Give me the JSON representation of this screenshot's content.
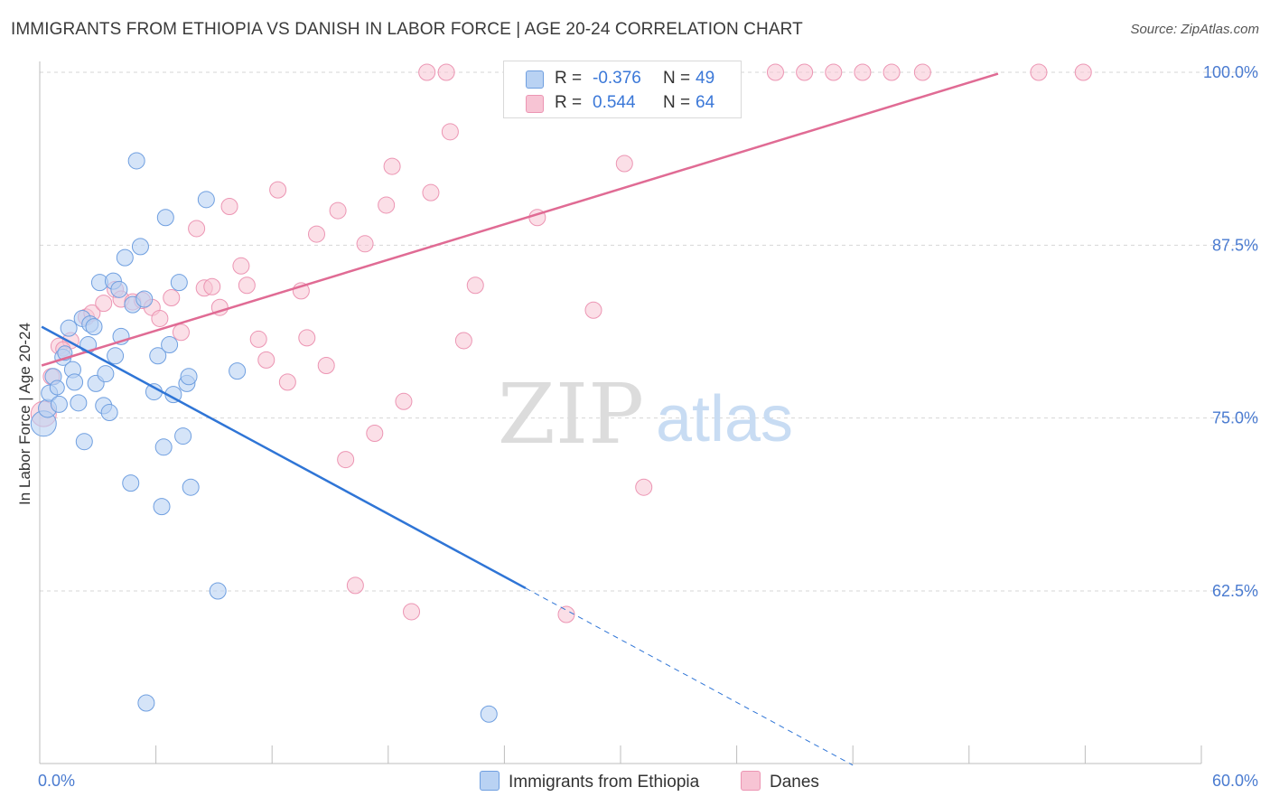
{
  "header": {
    "title": "IMMIGRANTS FROM ETHIOPIA VS DANISH IN LABOR FORCE | AGE 20-24 CORRELATION CHART",
    "source": "Source: ZipAtlas.com"
  },
  "watermark": {
    "zip": "ZIP",
    "atlas": "atlas"
  },
  "legend": {
    "rows": [
      {
        "r_label": "R =",
        "r_value": "-0.376",
        "n_label": "N =",
        "n_value": "49"
      },
      {
        "r_label": "R =",
        "r_value": "0.544",
        "n_label": "N =",
        "n_value": "64"
      }
    ],
    "bottom": [
      {
        "label": "Immigrants from Ethiopia"
      },
      {
        "label": "Danes"
      }
    ]
  },
  "colors": {
    "blue_fill": "#b9d2f3",
    "blue_stroke": "#6f9fe0",
    "blue_line": "#2f75d6",
    "pink_fill": "#f7c4d4",
    "pink_stroke": "#ec95b3",
    "pink_line": "#e06b94",
    "tick_text": "#4a7bd0",
    "grid": "#d6d6d6"
  },
  "chart_data": {
    "type": "scatter",
    "title": "IMMIGRANTS FROM ETHIOPIA VS DANISH IN LABOR FORCE | AGE 20-24 CORRELATION CHART",
    "xlabel": "",
    "ylabel": "In Labor Force | Age 20-24",
    "xlim": [
      0,
      60
    ],
    "ylim": [
      52.0,
      100.5
    ],
    "x_tick_labels": [
      "0.0%",
      "60.0%"
    ],
    "y_ticks": [
      62.5,
      75.0,
      87.5,
      100.0
    ],
    "y_tick_labels": [
      "62.5%",
      "75.0%",
      "87.5%",
      "100.0%"
    ],
    "grid": true,
    "series": [
      {
        "name": "Immigrants from Ethiopia",
        "color": "#6f9fe0",
        "R": -0.376,
        "N": 49,
        "trend": {
          "x": [
            0.1,
            25.1
          ],
          "y": [
            81.6,
            62.7
          ],
          "dashed_to": [
            42.0,
            49.9
          ]
        },
        "points": [
          [
            0.2,
            74.6,
            14
          ],
          [
            0.4,
            75.7,
            10
          ],
          [
            0.5,
            76.8,
            9
          ],
          [
            0.7,
            78.0,
            9
          ],
          [
            0.9,
            77.2,
            8
          ],
          [
            1.0,
            76.0,
            9
          ],
          [
            1.2,
            79.4,
            9
          ],
          [
            1.3,
            79.7,
            8
          ],
          [
            1.5,
            81.5,
            9
          ],
          [
            1.7,
            78.5,
            9
          ],
          [
            1.8,
            77.6,
            9
          ],
          [
            2.0,
            76.1,
            9
          ],
          [
            2.2,
            82.2,
            9
          ],
          [
            2.3,
            73.3,
            9
          ],
          [
            2.5,
            80.3,
            9
          ],
          [
            2.6,
            81.8,
            9
          ],
          [
            2.8,
            81.6,
            9
          ],
          [
            2.9,
            77.5,
            9
          ],
          [
            3.1,
            84.8,
            9
          ],
          [
            3.3,
            75.9,
            9
          ],
          [
            3.4,
            78.2,
            9
          ],
          [
            3.6,
            75.4,
            9
          ],
          [
            3.8,
            84.9,
            9
          ],
          [
            3.9,
            79.5,
            9
          ],
          [
            4.1,
            84.3,
            9
          ],
          [
            4.2,
            80.9,
            9
          ],
          [
            4.4,
            86.6,
            9
          ],
          [
            4.7,
            70.3,
            9
          ],
          [
            4.8,
            83.2,
            9
          ],
          [
            5.0,
            93.6,
            9
          ],
          [
            5.2,
            87.4,
            9
          ],
          [
            5.4,
            83.6,
            9
          ],
          [
            5.5,
            54.4,
            9
          ],
          [
            5.9,
            76.9,
            9
          ],
          [
            6.1,
            79.5,
            9
          ],
          [
            6.3,
            68.6,
            9
          ],
          [
            6.4,
            72.9,
            9
          ],
          [
            6.5,
            89.5,
            9
          ],
          [
            6.7,
            80.3,
            9
          ],
          [
            6.9,
            76.7,
            9
          ],
          [
            7.2,
            84.8,
            9
          ],
          [
            7.4,
            73.7,
            9
          ],
          [
            7.6,
            77.5,
            9
          ],
          [
            7.7,
            78.0,
            9
          ],
          [
            7.8,
            70.0,
            9
          ],
          [
            8.6,
            90.8,
            9
          ],
          [
            9.2,
            62.5,
            9
          ],
          [
            10.2,
            78.4,
            9
          ],
          [
            23.2,
            53.6,
            9
          ]
        ]
      },
      {
        "name": "Danes",
        "color": "#ec95b3",
        "R": 0.544,
        "N": 64,
        "trend": {
          "x": [
            0.1,
            49.5
          ],
          "y": [
            78.8,
            99.9
          ]
        },
        "points": [
          [
            0.2,
            75.3,
            14
          ],
          [
            0.6,
            78.0,
            9
          ],
          [
            1.0,
            80.2,
            9
          ],
          [
            1.6,
            80.6,
            9
          ],
          [
            2.4,
            82.3,
            9
          ],
          [
            2.7,
            82.6,
            9
          ],
          [
            3.3,
            83.3,
            9
          ],
          [
            3.9,
            84.3,
            9
          ],
          [
            4.2,
            83.6,
            9
          ],
          [
            4.8,
            83.4,
            9
          ],
          [
            5.3,
            83.5,
            9
          ],
          [
            5.8,
            83.0,
            9
          ],
          [
            6.2,
            82.2,
            9
          ],
          [
            6.8,
            83.7,
            9
          ],
          [
            7.3,
            81.2,
            9
          ],
          [
            8.1,
            88.7,
            9
          ],
          [
            8.5,
            84.4,
            9
          ],
          [
            8.9,
            84.5,
            9
          ],
          [
            9.3,
            83.0,
            9
          ],
          [
            9.8,
            90.3,
            9
          ],
          [
            10.4,
            86.0,
            9
          ],
          [
            10.7,
            84.6,
            9
          ],
          [
            11.3,
            80.7,
            9
          ],
          [
            11.7,
            79.2,
            9
          ],
          [
            12.3,
            91.5,
            9
          ],
          [
            12.8,
            77.6,
            9
          ],
          [
            13.5,
            84.2,
            9
          ],
          [
            13.8,
            80.8,
            9
          ],
          [
            14.3,
            88.3,
            9
          ],
          [
            14.8,
            78.8,
            9
          ],
          [
            15.4,
            90.0,
            9
          ],
          [
            15.8,
            72.0,
            9
          ],
          [
            16.3,
            62.9,
            9
          ],
          [
            16.8,
            87.6,
            9
          ],
          [
            17.3,
            73.9,
            9
          ],
          [
            17.9,
            90.4,
            9
          ],
          [
            18.2,
            93.2,
            9
          ],
          [
            18.8,
            76.2,
            9
          ],
          [
            19.2,
            61.0,
            9
          ],
          [
            20.0,
            100.0,
            9
          ],
          [
            20.2,
            91.3,
            9
          ],
          [
            21.0,
            100.0,
            9
          ],
          [
            21.2,
            95.7,
            9
          ],
          [
            21.9,
            80.6,
            9
          ],
          [
            22.5,
            84.6,
            9
          ],
          [
            24.5,
            100.0,
            9
          ],
          [
            25.7,
            89.5,
            9
          ],
          [
            27.2,
            60.8,
            9
          ],
          [
            28.1,
            100.0,
            9
          ],
          [
            28.6,
            82.8,
            9
          ],
          [
            29.9,
            100.0,
            9
          ],
          [
            30.2,
            93.4,
            9
          ],
          [
            31.2,
            70.0,
            9
          ],
          [
            33.5,
            100.0,
            9
          ],
          [
            35.7,
            100.0,
            9
          ],
          [
            38.0,
            100.0,
            9
          ],
          [
            39.5,
            100.0,
            9
          ],
          [
            41.0,
            100.0,
            9
          ],
          [
            42.5,
            100.0,
            9
          ],
          [
            44.0,
            100.0,
            9
          ],
          [
            45.6,
            100.0,
            9
          ],
          [
            51.6,
            100.0,
            9
          ],
          [
            53.9,
            100.0,
            9
          ],
          [
            1.2,
            80.0,
            8
          ]
        ]
      }
    ]
  }
}
